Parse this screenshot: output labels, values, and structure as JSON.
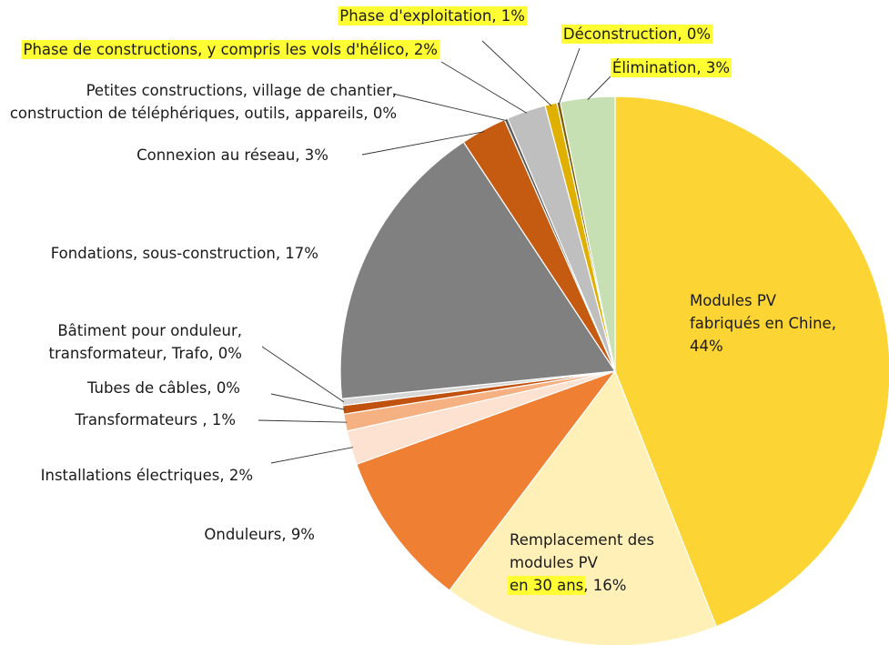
{
  "chart_data": {
    "type": "pie",
    "title": "",
    "slices": [
      {
        "id": "modules-pv-chine",
        "value": 44.0,
        "color": "#fcd535",
        "label_lines": [
          "Modules PV",
          "fabriqués en Chine,",
          "44%"
        ]
      },
      {
        "id": "remplacement-modules",
        "value": 16.3,
        "color": "#fff0b8",
        "label_lines": [
          "Remplacement des",
          "modules PV",
          "en 30 ans, 16%"
        ],
        "highlight_part": "en 30 ans"
      },
      {
        "id": "onduleurs",
        "value": 9.2,
        "color": "#ee7f33",
        "label_lines": [
          "Onduleurs, 9%"
        ]
      },
      {
        "id": "installations-electriques",
        "value": 2.0,
        "color": "#fde2d2",
        "label_lines": [
          "Installations électriques, 2%"
        ]
      },
      {
        "id": "transformateurs",
        "value": 1.0,
        "color": "#f6b183",
        "label_lines": [
          "Transformateurs , 1%"
        ]
      },
      {
        "id": "tubes-cables",
        "value": 0.5,
        "color": "#c0510e",
        "label_lines": [
          "Tubes de câbles, 0%"
        ]
      },
      {
        "id": "batiment-onduleur",
        "value": 0.4,
        "color": "#d6d6d6",
        "label_lines": [
          "Bâtiment pour onduleur,",
          "transformateur, Trafo, 0%"
        ]
      },
      {
        "id": "fondations",
        "value": 17.3,
        "color": "#808080",
        "label_lines": [
          "Fondations, sous-construction, 17%"
        ]
      },
      {
        "id": "connexion-reseau",
        "value": 2.7,
        "color": "#c55a11",
        "label_lines": [
          "Connexion au réseau, 3%"
        ]
      },
      {
        "id": "petites-constructions",
        "value": 0.2,
        "color": "#5a5a5a",
        "label_lines": [
          "Petites constructions, village de chantier,",
          "construction de téléphériques, outils, appareils, 0%"
        ]
      },
      {
        "id": "phase-constructions",
        "value": 2.3,
        "color": "#bfbfbf",
        "label_lines": [
          "Phase de constructions, y compris les vols d'hélico, 2%"
        ],
        "highlighted": true
      },
      {
        "id": "phase-exploitation",
        "value": 0.7,
        "color": "#e0b000",
        "label_lines": [
          "Phase d'exploitation, 1%"
        ],
        "highlighted": true
      },
      {
        "id": "deconstruction",
        "value": 0.2,
        "color": "#7f6000",
        "label_lines": [
          "Déconstruction, 0%"
        ],
        "highlighted": true
      },
      {
        "id": "elimination",
        "value": 3.2,
        "color": "#c6e0b4",
        "label_lines": [
          "Élimination, 3%"
        ],
        "highlighted": true
      }
    ]
  }
}
